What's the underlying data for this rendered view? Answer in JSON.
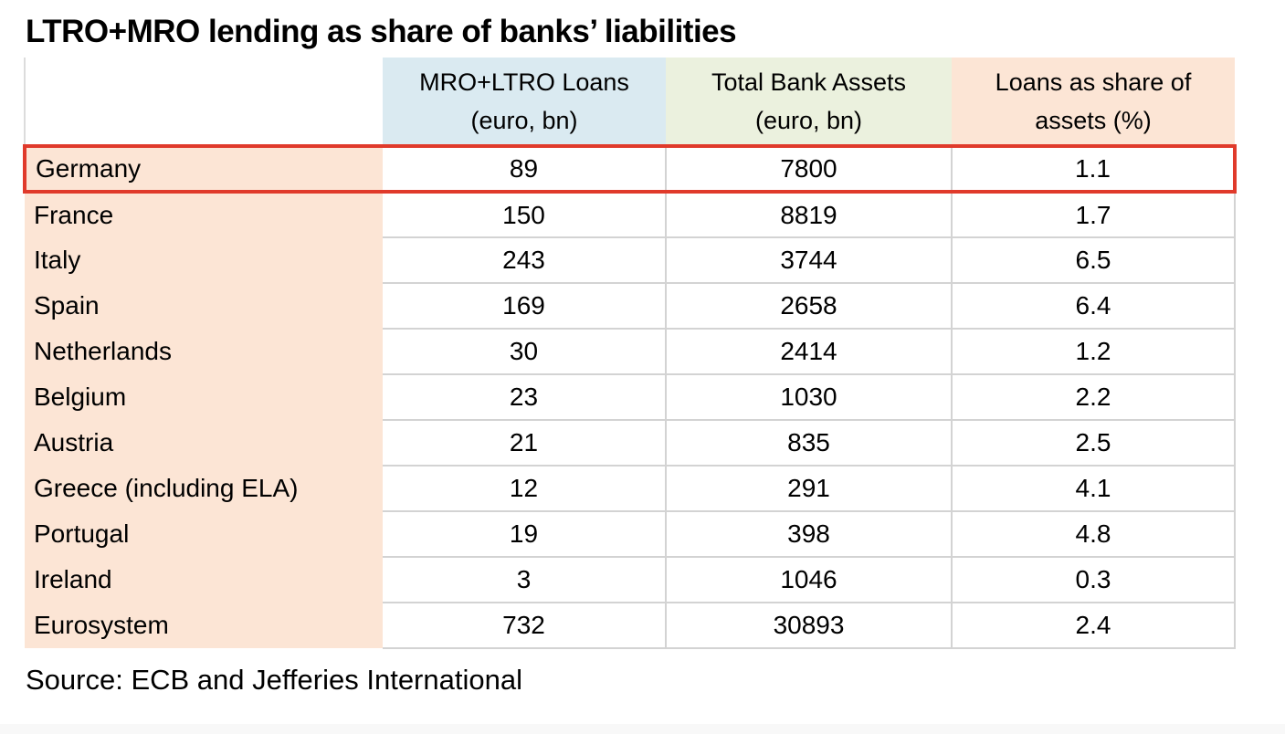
{
  "title": "LTRO+MRO lending as share of banks’ liabilities",
  "source": "Source: ECB and Jefferies International",
  "colors": {
    "red": "#e03a2b",
    "blue": "#daeaf1",
    "green": "#ebf1de",
    "peach": "#fce5d5",
    "grid": "#d3d3d3",
    "band": "#f8f8f8"
  },
  "table": {
    "headers": {
      "country": "",
      "loans": {
        "line1": "MRO+LTRO Loans",
        "line2": "(euro, bn)"
      },
      "assets": {
        "line1": "Total Bank Assets",
        "line2": "(euro, bn)"
      },
      "share": {
        "line1": "Loans as share of",
        "line2": "assets (%)"
      }
    },
    "rows": [
      {
        "country": "Germany",
        "loans": "89",
        "assets": "7800",
        "share": "1.1",
        "highlighted": true
      },
      {
        "country": "France",
        "loans": "150",
        "assets": "8819",
        "share": "1.7",
        "highlighted": false
      },
      {
        "country": "Italy",
        "loans": "243",
        "assets": "3744",
        "share": "6.5",
        "highlighted": false
      },
      {
        "country": "Spain",
        "loans": "169",
        "assets": "2658",
        "share": "6.4",
        "highlighted": false
      },
      {
        "country": "Netherlands",
        "loans": "30",
        "assets": "2414",
        "share": "1.2",
        "highlighted": false
      },
      {
        "country": "Belgium",
        "loans": "23",
        "assets": "1030",
        "share": "2.2",
        "highlighted": false
      },
      {
        "country": "Austria",
        "loans": "21",
        "assets": "835",
        "share": "2.5",
        "highlighted": false
      },
      {
        "country": "Greece (including ELA)",
        "loans": "12",
        "assets": "291",
        "share": "4.1",
        "highlighted": false
      },
      {
        "country": "Portugal",
        "loans": "19",
        "assets": "398",
        "share": "4.8",
        "highlighted": false
      },
      {
        "country": "Ireland",
        "loans": "3",
        "assets": "1046",
        "share": "0.3",
        "highlighted": false
      },
      {
        "country": "Eurosystem",
        "loans": "732",
        "assets": "30893",
        "share": "2.4",
        "highlighted": false
      }
    ]
  },
  "chart_data": {
    "type": "table",
    "title": "LTRO+MRO lending as share of banks’ liabilities",
    "columns": [
      "",
      "MRO+LTRO Loans (euro, bn)",
      "Total Bank Assets (euro, bn)",
      "Loans as share of assets (%)"
    ],
    "rows": [
      [
        "Germany",
        89,
        7800,
        1.1
      ],
      [
        "France",
        150,
        8819,
        1.7
      ],
      [
        "Italy",
        243,
        3744,
        6.5
      ],
      [
        "Spain",
        169,
        2658,
        6.4
      ],
      [
        "Netherlands",
        30,
        2414,
        1.2
      ],
      [
        "Belgium",
        23,
        1030,
        2.2
      ],
      [
        "Austria",
        21,
        835,
        2.5
      ],
      [
        "Greece (including ELA)",
        12,
        291,
        4.1
      ],
      [
        "Portugal",
        19,
        398,
        4.8
      ],
      [
        "Ireland",
        3,
        1046,
        0.3
      ],
      [
        "Eurosystem",
        732,
        30893,
        2.4
      ]
    ],
    "highlighted_row": "Germany",
    "source": "Source: ECB and Jefferies International",
    "layout": {
      "header_fills": [
        "white",
        "light-blue",
        "light-green",
        "peach"
      ],
      "country_column_fill": "peach",
      "grid": "light-gray horizontal and vertical lines on data columns only"
    }
  }
}
